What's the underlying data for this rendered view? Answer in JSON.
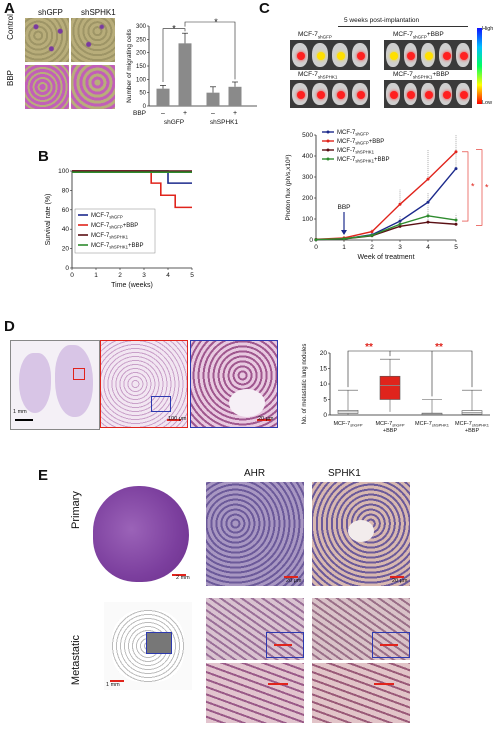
{
  "panels": {
    "A": {
      "label": "A",
      "img_cols": [
        "shGFP",
        "shSPHK1"
      ],
      "img_rows": [
        "Control",
        "BBP"
      ],
      "chart_data": {
        "type": "bar",
        "ylabel": "Number of migrating cells",
        "ylim": [
          0,
          300
        ],
        "yticks": [
          "0",
          "50",
          "100",
          "150",
          "200",
          "250",
          "300"
        ],
        "bbp_label": "BBP",
        "bbp_signs": [
          "–",
          "+",
          "–",
          "+"
        ],
        "groups": [
          "shGFP",
          "shSPHK1"
        ],
        "values": [
          65,
          235,
          50,
          72
        ],
        "errors": [
          12,
          38,
          22,
          18
        ],
        "significance": [
          "*",
          "*"
        ]
      }
    },
    "B": {
      "label": "B",
      "chart_data": {
        "type": "line",
        "xlabel": "Time (weeks)",
        "ylabel": "Survival rate (%)",
        "xlim": [
          0,
          5
        ],
        "ylim": [
          0,
          100
        ],
        "xticks": [
          "0",
          "1",
          "2",
          "3",
          "4",
          "5"
        ],
        "yticks": [
          "0",
          "20",
          "40",
          "60",
          "80",
          "100"
        ],
        "series": [
          {
            "name": "MCF-7shGFP",
            "name_main": "MCF-7",
            "name_sub": "shGFP",
            "color": "#1c2a8c",
            "steps": [
              [
                0,
                100
              ],
              [
                4,
                100
              ],
              [
                4,
                87.5
              ],
              [
                5,
                87.5
              ]
            ]
          },
          {
            "name": "MCF-7shGFP+BBP",
            "name_main": "MCF-7",
            "name_sub": "shGFP",
            "suffix": "+BBP",
            "color": "#e0241c",
            "steps": [
              [
                0,
                100
              ],
              [
                3.3,
                100
              ],
              [
                3.3,
                87.5
              ],
              [
                3.7,
                87.5
              ],
              [
                3.7,
                75
              ],
              [
                4.3,
                75
              ],
              [
                4.3,
                62.5
              ],
              [
                5,
                62.5
              ]
            ]
          },
          {
            "name": "MCF-7shSPHK1",
            "name_main": "MCF-7",
            "name_sub": "shSPHK1",
            "color": "#5a0f14",
            "steps": [
              [
                0,
                100
              ],
              [
                5,
                100
              ]
            ]
          },
          {
            "name": "MCF-7shSPHK1+BBP",
            "name_main": "MCF-7",
            "name_sub": "shSPHK1",
            "suffix": "+BBP",
            "color": "#2e8b2e",
            "steps": [
              [
                0,
                100
              ],
              [
                5,
                100
              ]
            ]
          }
        ]
      }
    },
    "C": {
      "label": "C",
      "imaging_title": "5 weeks post-implantation",
      "mouse_groups": [
        {
          "main": "MCF-7",
          "sub": "shGFP",
          "suffix": ""
        },
        {
          "main": "MCF-7",
          "sub": "shGFP",
          "suffix": "+BBP"
        },
        {
          "main": "MCF-7",
          "sub": "shSPHK1",
          "suffix": ""
        },
        {
          "main": "MCF-7",
          "sub": "shSPHK1",
          "suffix": "+BBP"
        }
      ],
      "colorbar_low": "Low",
      "colorbar_high": "High",
      "chart_data": {
        "type": "line",
        "xlabel": "Week of treatment",
        "ylabel": "Photon flux (ph/s,x10⁸)",
        "xlim": [
          0,
          5
        ],
        "ylim": [
          0,
          500
        ],
        "xticks": [
          "0",
          "1",
          "2",
          "3",
          "4",
          "5"
        ],
        "yticks": [
          "0",
          "100",
          "200",
          "300",
          "400",
          "500"
        ],
        "annotation": "BBP",
        "annotation_x": 1,
        "significance": [
          "*",
          "*"
        ],
        "x": [
          0,
          1,
          2,
          3,
          4,
          5
        ],
        "series": [
          {
            "name": "MCF-7shGFP",
            "name_main": "MCF-7",
            "name_sub": "shGFP",
            "color": "#1c2a8c",
            "values": [
              2,
              5,
              25,
              90,
              180,
              340
            ],
            "errors": [
              0,
              2,
              8,
              25,
              45,
              80
            ]
          },
          {
            "name": "MCF-7shGFP+BBP",
            "name_main": "MCF-7",
            "name_sub": "shGFP",
            "suffix": "+BBP",
            "color": "#e0241c",
            "values": [
              3,
              10,
              40,
              170,
              290,
              420
            ],
            "errors": [
              0,
              3,
              12,
              70,
              140,
              80
            ]
          },
          {
            "name": "MCF-7shSPHK1",
            "name_main": "MCF-7",
            "name_sub": "shSPHK1",
            "color": "#5a0f14",
            "values": [
              2,
              5,
              20,
              65,
              85,
              75
            ],
            "errors": [
              0,
              2,
              6,
              15,
              40,
              25
            ]
          },
          {
            "name": "MCF-7shSPHK1+BBP",
            "name_main": "MCF-7",
            "name_sub": "shSPHK1",
            "suffix": "+BBP",
            "color": "#2e8b2e",
            "values": [
              2,
              6,
              22,
              75,
              115,
              95
            ],
            "errors": [
              0,
              2,
              6,
              20,
              50,
              30
            ]
          }
        ]
      }
    },
    "D": {
      "label": "D",
      "scale_bars": [
        "1 mm",
        "100 μm",
        "20 μm"
      ],
      "chart_data": {
        "type": "box",
        "ylabel": "No. of metastatic lung nodules",
        "ylim": [
          0,
          20
        ],
        "yticks": [
          "0",
          "5",
          "10",
          "15",
          "20"
        ],
        "categories": [
          {
            "main": "MCF-7",
            "sub": "shGFP",
            "suffix": ""
          },
          {
            "main": "MCF-7",
            "sub": "shGFP",
            "suffix": "+BBP"
          },
          {
            "main": "MCF-7",
            "sub": "shSPHK1",
            "suffix": ""
          },
          {
            "main": "MCF-7",
            "sub": "shSPHK1",
            "suffix": "+BBP"
          }
        ],
        "boxes": [
          {
            "min": 0,
            "q1": 0.5,
            "median": 1,
            "q3": 1.5,
            "max": 8,
            "color": "#ffffff"
          },
          {
            "min": 1,
            "q1": 5,
            "median": 9.5,
            "q3": 12.5,
            "max": 18,
            "color": "#e0241c"
          },
          {
            "min": 0,
            "q1": 0,
            "median": 0.3,
            "q3": 0.6,
            "max": 5,
            "color": "#ffffff"
          },
          {
            "min": 0,
            "q1": 0.3,
            "median": 0.8,
            "q3": 1.4,
            "max": 8,
            "color": "#ffffff"
          }
        ],
        "significance": [
          "**",
          "**"
        ]
      }
    },
    "E": {
      "label": "E",
      "col_labels": [
        "AHR",
        "SPHK1"
      ],
      "row_labels": [
        "Primary",
        "Metastatic"
      ],
      "scale_bars": [
        "2 mm",
        "20 μm",
        "20 μm",
        "1 mm"
      ]
    }
  }
}
